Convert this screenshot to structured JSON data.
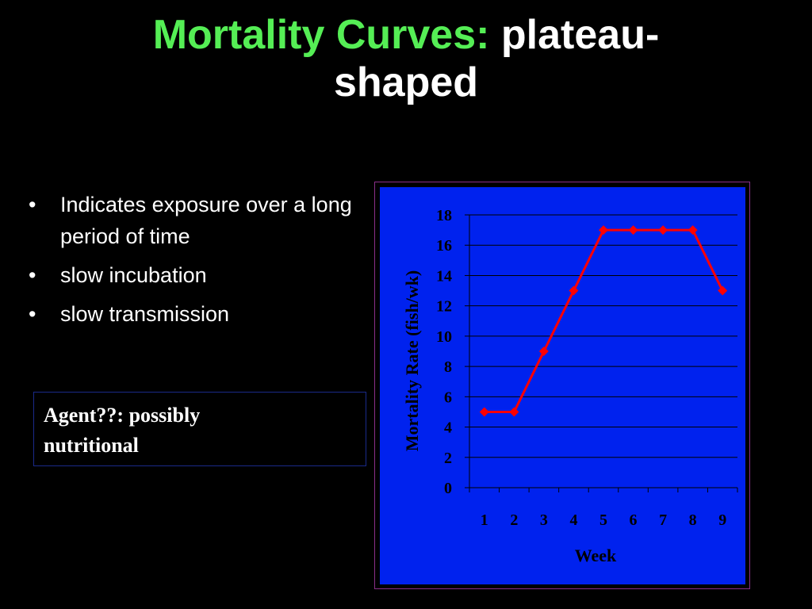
{
  "title": {
    "part1": "Mortality Curves:",
    "part2": "plateau-",
    "part3": "shaped"
  },
  "bullets": [
    "Indicates exposure over a long period of time",
    "slow incubation",
    "slow transmission"
  ],
  "agent_box": {
    "line1": "Agent??:  possibly",
    "line2": "nutritional"
  },
  "colors": {
    "title_accent": "#55ee55",
    "chart_background": "#0022ee",
    "series_line": "#ff0000"
  },
  "chart_data": {
    "type": "line",
    "categories": [
      "1",
      "2",
      "3",
      "4",
      "5",
      "6",
      "7",
      "8",
      "9"
    ],
    "series": [
      {
        "values": [
          5,
          5,
          9,
          13,
          17,
          17,
          17,
          17,
          13
        ]
      }
    ],
    "xlabel": "Week",
    "ylabel": "Mortality Rate (fish/wk)",
    "ylim": [
      0,
      18
    ],
    "yticks": [
      "0",
      "2",
      "4",
      "6",
      "8",
      "10",
      "12",
      "14",
      "16",
      "18"
    ],
    "grid": "horizontal",
    "marker": "diamond",
    "legend": "none"
  }
}
